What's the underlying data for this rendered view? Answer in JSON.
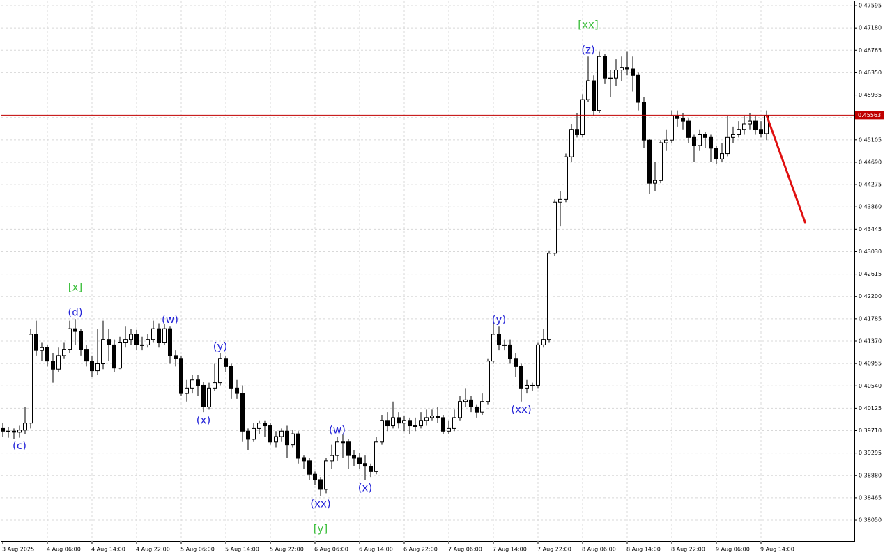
{
  "chart_data": {
    "type": "candlestick",
    "categories": [
      "3 Aug 2025",
      null,
      null,
      null,
      null,
      null,
      null,
      null,
      "4 Aug 06:00",
      null,
      null,
      null,
      null,
      null,
      null,
      null,
      "4 Aug 14:00",
      null,
      null,
      null,
      null,
      null,
      null,
      null,
      "4 Aug 22:00",
      null,
      null,
      null,
      null,
      null,
      null,
      null,
      "5 Aug 06:00",
      null,
      null,
      null,
      null,
      null,
      null,
      null,
      "5 Aug 14:00",
      null,
      null,
      null,
      null,
      null,
      null,
      null,
      "5 Aug 22:00",
      null,
      null,
      null,
      null,
      null,
      null,
      null,
      "6 Aug 06:00",
      null,
      null,
      null,
      null,
      null,
      null,
      null,
      "6 Aug 14:00",
      null,
      null,
      null,
      null,
      null,
      null,
      null,
      "6 Aug 22:00",
      null,
      null,
      null,
      null,
      null,
      null,
      null,
      "7 Aug 06:00",
      null,
      null,
      null,
      null,
      null,
      null,
      null,
      "7 Aug 14:00",
      null,
      null,
      null,
      null,
      null,
      null,
      null,
      "7 Aug 22:00",
      null,
      null,
      null,
      null,
      null,
      null,
      null,
      "8 Aug 06:00",
      null,
      null,
      null,
      null,
      null,
      null,
      null,
      "8 Aug 14:00",
      null,
      null,
      null,
      null,
      null,
      null,
      null,
      "8 Aug 22:00",
      null,
      null,
      null,
      null,
      null,
      null,
      null,
      "9 Aug 06:00",
      null,
      null,
      null,
      null,
      null,
      null,
      null,
      "9 Aug 14:00",
      null
    ],
    "candles": [
      [
        0.3975,
        0.3985,
        0.396,
        0.397
      ],
      [
        0.397,
        0.3978,
        0.3958,
        0.397
      ],
      [
        0.397,
        0.3975,
        0.3955,
        0.3968
      ],
      [
        0.3968,
        0.398,
        0.3958,
        0.3972
      ],
      [
        0.3972,
        0.4015,
        0.3965,
        0.3985
      ],
      [
        0.3985,
        0.416,
        0.3975,
        0.415
      ],
      [
        0.415,
        0.4175,
        0.411,
        0.412
      ],
      [
        0.412,
        0.4135,
        0.41,
        0.4125
      ],
      [
        0.4125,
        0.413,
        0.409,
        0.41
      ],
      [
        0.41,
        0.4115,
        0.406,
        0.4085
      ],
      [
        0.4085,
        0.4125,
        0.408,
        0.411
      ],
      [
        0.411,
        0.4135,
        0.4105,
        0.4122
      ],
      [
        0.4122,
        0.4175,
        0.4115,
        0.416
      ],
      [
        0.416,
        0.4178,
        0.413,
        0.4155
      ],
      [
        0.4155,
        0.416,
        0.411,
        0.4122
      ],
      [
        0.4122,
        0.413,
        0.409,
        0.41
      ],
      [
        0.41,
        0.411,
        0.407,
        0.4082
      ],
      [
        0.4082,
        0.416,
        0.4075,
        0.4095
      ],
      [
        0.4095,
        0.4175,
        0.4085,
        0.414
      ],
      [
        0.414,
        0.416,
        0.41,
        0.413
      ],
      [
        0.413,
        0.414,
        0.408,
        0.4087
      ],
      [
        0.4087,
        0.4145,
        0.4085,
        0.4135
      ],
      [
        0.4135,
        0.4165,
        0.4125,
        0.414
      ],
      [
        0.414,
        0.416,
        0.413,
        0.415
      ],
      [
        0.415,
        0.4158,
        0.412,
        0.413
      ],
      [
        0.413,
        0.4145,
        0.412,
        0.413
      ],
      [
        0.413,
        0.415,
        0.4125,
        0.414
      ],
      [
        0.414,
        0.4175,
        0.4135,
        0.416
      ],
      [
        0.416,
        0.417,
        0.4125,
        0.4135
      ],
      [
        0.4135,
        0.4168,
        0.413,
        0.416
      ],
      [
        0.416,
        0.4165,
        0.4095,
        0.411
      ],
      [
        0.411,
        0.412,
        0.409,
        0.4105
      ],
      [
        0.4105,
        0.411,
        0.4035,
        0.404
      ],
      [
        0.404,
        0.4065,
        0.4025,
        0.405
      ],
      [
        0.405,
        0.4075,
        0.404,
        0.4065
      ],
      [
        0.4065,
        0.4075,
        0.4035,
        0.4055
      ],
      [
        0.4055,
        0.4062,
        0.4005,
        0.4015
      ],
      [
        0.4015,
        0.406,
        0.401,
        0.405
      ],
      [
        0.405,
        0.4095,
        0.4045,
        0.406
      ],
      [
        0.406,
        0.4115,
        0.4055,
        0.4105
      ],
      [
        0.4105,
        0.411,
        0.408,
        0.409
      ],
      [
        0.409,
        0.4095,
        0.403,
        0.405
      ],
      [
        0.405,
        0.4065,
        0.403,
        0.404
      ],
      [
        0.404,
        0.4055,
        0.395,
        0.397
      ],
      [
        0.397,
        0.3975,
        0.3935,
        0.3955
      ],
      [
        0.3955,
        0.3985,
        0.395,
        0.3975
      ],
      [
        0.3975,
        0.399,
        0.3965,
        0.3985
      ],
      [
        0.3985,
        0.399,
        0.396,
        0.398
      ],
      [
        0.398,
        0.3985,
        0.3945,
        0.395
      ],
      [
        0.395,
        0.397,
        0.394,
        0.396
      ],
      [
        0.396,
        0.3975,
        0.395,
        0.397
      ],
      [
        0.397,
        0.398,
        0.392,
        0.3945
      ],
      [
        0.3945,
        0.3972,
        0.394,
        0.3965
      ],
      [
        0.3965,
        0.397,
        0.391,
        0.392
      ],
      [
        0.392,
        0.3925,
        0.39,
        0.3915
      ],
      [
        0.3915,
        0.392,
        0.388,
        0.389
      ],
      [
        0.389,
        0.3895,
        0.387,
        0.388
      ],
      [
        0.388,
        0.3885,
        0.385,
        0.3862
      ],
      [
        0.3862,
        0.392,
        0.3855,
        0.3915
      ],
      [
        0.3915,
        0.3945,
        0.39,
        0.3925
      ],
      [
        0.3925,
        0.396,
        0.3915,
        0.395
      ],
      [
        0.395,
        0.3965,
        0.392,
        0.395
      ],
      [
        0.395,
        0.3955,
        0.39,
        0.3925
      ],
      [
        0.3925,
        0.3935,
        0.3905,
        0.392
      ],
      [
        0.392,
        0.393,
        0.39,
        0.391
      ],
      [
        0.391,
        0.3925,
        0.388,
        0.3905
      ],
      [
        0.3905,
        0.391,
        0.3885,
        0.3895
      ],
      [
        0.3895,
        0.396,
        0.389,
        0.395
      ],
      [
        0.395,
        0.4,
        0.3945,
        0.399
      ],
      [
        0.399,
        0.4005,
        0.397,
        0.398
      ],
      [
        0.398,
        0.4025,
        0.3975,
        0.3995
      ],
      [
        0.3995,
        0.4005,
        0.3975,
        0.3985
      ],
      [
        0.3985,
        0.3998,
        0.397,
        0.399
      ],
      [
        0.399,
        0.3995,
        0.3965,
        0.398
      ],
      [
        0.398,
        0.3995,
        0.397,
        0.398
      ],
      [
        0.398,
        0.4005,
        0.3975,
        0.399
      ],
      [
        0.399,
        0.401,
        0.398,
        0.3995
      ],
      [
        0.3995,
        0.401,
        0.399,
        0.3998
      ],
      [
        0.3998,
        0.4015,
        0.3985,
        0.3995
      ],
      [
        0.3995,
        0.4,
        0.3965,
        0.397
      ],
      [
        0.397,
        0.399,
        0.3965,
        0.3975
      ],
      [
        0.3975,
        0.401,
        0.397,
        0.3995
      ],
      [
        0.3995,
        0.4035,
        0.399,
        0.4025
      ],
      [
        0.4025,
        0.405,
        0.4015,
        0.4028
      ],
      [
        0.4028,
        0.4035,
        0.4005,
        0.4015
      ],
      [
        0.4015,
        0.402,
        0.3995,
        0.4005
      ],
      [
        0.4005,
        0.404,
        0.4,
        0.4025
      ],
      [
        0.4025,
        0.4105,
        0.402,
        0.41
      ],
      [
        0.41,
        0.417,
        0.4095,
        0.415
      ],
      [
        0.415,
        0.4165,
        0.412,
        0.413
      ],
      [
        0.413,
        0.414,
        0.412,
        0.413
      ],
      [
        0.413,
        0.414,
        0.4095,
        0.4105
      ],
      [
        0.4105,
        0.4115,
        0.407,
        0.409
      ],
      [
        0.409,
        0.4095,
        0.4025,
        0.405
      ],
      [
        0.405,
        0.4065,
        0.404,
        0.4055
      ],
      [
        0.4055,
        0.406,
        0.4045,
        0.4055
      ],
      [
        0.4055,
        0.4135,
        0.405,
        0.413
      ],
      [
        0.413,
        0.416,
        0.4125,
        0.414
      ],
      [
        0.414,
        0.4305,
        0.4135,
        0.43
      ],
      [
        0.43,
        0.44,
        0.4295,
        0.4395
      ],
      [
        0.4395,
        0.4415,
        0.435,
        0.44
      ],
      [
        0.44,
        0.4485,
        0.4395,
        0.4479
      ],
      [
        0.4479,
        0.454,
        0.447,
        0.453
      ],
      [
        0.453,
        0.456,
        0.4515,
        0.452
      ],
      [
        0.452,
        0.4595,
        0.4515,
        0.4585
      ],
      [
        0.4585,
        0.4665,
        0.458,
        0.462
      ],
      [
        0.462,
        0.463,
        0.4555,
        0.4565
      ],
      [
        0.4565,
        0.4675,
        0.456,
        0.4665
      ],
      [
        0.4665,
        0.467,
        0.4615,
        0.4625
      ],
      [
        0.4625,
        0.464,
        0.459,
        0.4625
      ],
      [
        0.4625,
        0.466,
        0.461,
        0.464
      ],
      [
        0.464,
        0.4665,
        0.462,
        0.4645
      ],
      [
        0.4645,
        0.4675,
        0.463,
        0.4642
      ],
      [
        0.4642,
        0.4665,
        0.46,
        0.463
      ],
      [
        0.463,
        0.4635,
        0.4565,
        0.458
      ],
      [
        0.458,
        0.459,
        0.4495,
        0.451
      ],
      [
        0.451,
        0.4512,
        0.441,
        0.443
      ],
      [
        0.443,
        0.447,
        0.4415,
        0.4435
      ],
      [
        0.4435,
        0.451,
        0.443,
        0.4505
      ],
      [
        0.4505,
        0.453,
        0.449,
        0.451
      ],
      [
        0.451,
        0.4565,
        0.4505,
        0.4555
      ],
      [
        0.4555,
        0.4565,
        0.4535,
        0.455
      ],
      [
        0.455,
        0.456,
        0.453,
        0.4545
      ],
      [
        0.4545,
        0.455,
        0.4505,
        0.4515
      ],
      [
        0.4515,
        0.452,
        0.447,
        0.45
      ],
      [
        0.45,
        0.453,
        0.449,
        0.452
      ],
      [
        0.452,
        0.4525,
        0.4495,
        0.4515
      ],
      [
        0.4515,
        0.452,
        0.447,
        0.4495
      ],
      [
        0.4495,
        0.45,
        0.4465,
        0.4475
      ],
      [
        0.4475,
        0.4505,
        0.447,
        0.4485
      ],
      [
        0.4485,
        0.4555,
        0.448,
        0.4515
      ],
      [
        0.4515,
        0.4535,
        0.4505,
        0.452
      ],
      [
        0.452,
        0.4545,
        0.4515,
        0.453
      ],
      [
        0.453,
        0.4555,
        0.452,
        0.454
      ],
      [
        0.454,
        0.456,
        0.453,
        0.4545
      ],
      [
        0.4545,
        0.4555,
        0.452,
        0.453
      ],
      [
        0.453,
        0.4545,
        0.4515,
        0.4522
      ],
      [
        0.4522,
        0.4565,
        0.451,
        0.4556
      ]
    ],
    "up_color": "#ffffff",
    "down_color": "#000000",
    "wick_color": "#000000",
    "ylim": [
      0.3765,
      0.47673
    ],
    "yticks": [
      {
        "value": 0.47595,
        "label": "0.47595"
      },
      {
        "value": 0.4718,
        "label": "0.47180"
      },
      {
        "value": 0.46765,
        "label": "0.46765"
      },
      {
        "value": 0.4635,
        "label": "0.46350"
      },
      {
        "value": 0.45935,
        "label": "0.45935"
      },
      {
        "value": 0.4552,
        "label": "0.45520"
      },
      {
        "value": 0.45105,
        "label": "0.45105"
      },
      {
        "value": 0.4469,
        "label": "0.44690"
      },
      {
        "value": 0.44275,
        "label": "0.44275"
      },
      {
        "value": 0.4386,
        "label": "0.43860"
      },
      {
        "value": 0.43445,
        "label": "0.43445"
      },
      {
        "value": 0.4303,
        "label": "0.43030"
      },
      {
        "value": 0.42615,
        "label": "0.42615"
      },
      {
        "value": 0.422,
        "label": "0.42200"
      },
      {
        "value": 0.41785,
        "label": "0.41785"
      },
      {
        "value": 0.4137,
        "label": "0.41370"
      },
      {
        "value": 0.40955,
        "label": "0.40955"
      },
      {
        "value": 0.4054,
        "label": "0.40540"
      },
      {
        "value": 0.40125,
        "label": "0.40125"
      },
      {
        "value": 0.3971,
        "label": "0.39710"
      },
      {
        "value": 0.39295,
        "label": "0.39295"
      },
      {
        "value": 0.3888,
        "label": "0.38880"
      },
      {
        "value": 0.38465,
        "label": "0.38465"
      },
      {
        "value": 0.3805,
        "label": "0.38050"
      }
    ],
    "grid": true,
    "current_price": 0.45563,
    "current_price_color": "#c00000",
    "forecast": [
      0.4556,
      0.4355
    ],
    "forecast_color": "#e01010",
    "annotations": [
      {
        "at": 3,
        "side": "below",
        "lines": [
          {
            "text": "(c)",
            "color": "#2424d8"
          }
        ]
      },
      {
        "at": 13,
        "side": "above",
        "lines": [
          {
            "text": "(d)",
            "color": "#2424d8"
          },
          {
            "text": "[x]",
            "color": "#3cbf3c"
          }
        ]
      },
      {
        "at": 30,
        "side": "above",
        "lines": [
          {
            "text": "(w)",
            "color": "#2424d8"
          }
        ]
      },
      {
        "at": 36,
        "side": "below",
        "lines": [
          {
            "text": "(x)",
            "color": "#2424d8"
          }
        ]
      },
      {
        "at": 39,
        "side": "above",
        "lines": [
          {
            "text": "(y)",
            "color": "#2424d8"
          }
        ]
      },
      {
        "at": 57,
        "side": "below",
        "lines": [
          {
            "text": "(xx)",
            "color": "#2424d8"
          },
          {
            "text": "[y]",
            "color": "#3cbf3c"
          }
        ]
      },
      {
        "at": 60,
        "side": "above",
        "lines": [
          {
            "text": "(w)",
            "color": "#2424d8"
          }
        ]
      },
      {
        "at": 65,
        "side": "below",
        "lines": [
          {
            "text": "(x)",
            "color": "#2424d8"
          }
        ]
      },
      {
        "at": 89,
        "side": "above",
        "lines": [
          {
            "text": "(y)",
            "color": "#2424d8"
          }
        ]
      },
      {
        "at": 93,
        "side": "below",
        "lines": [
          {
            "text": "(xx)",
            "color": "#2424d8"
          }
        ]
      },
      {
        "at": 105,
        "side": "above",
        "lines": [
          {
            "text": "(z)",
            "color": "#2424d8"
          },
          {
            "text": "[xx]",
            "color": "#3cbf3c"
          }
        ]
      }
    ]
  }
}
